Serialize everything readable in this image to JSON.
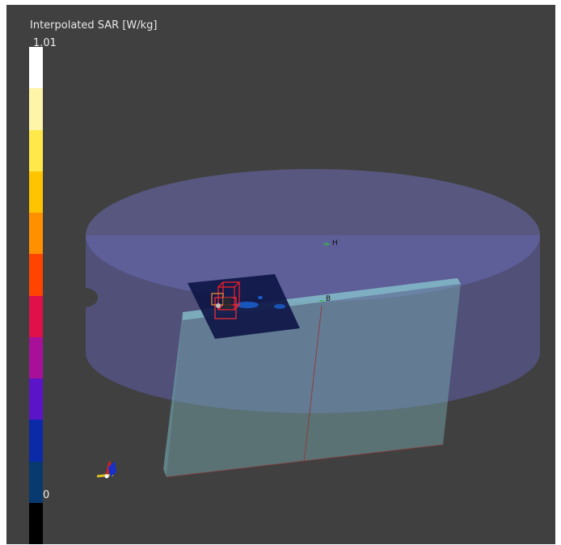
{
  "legend": {
    "title": "Interpolated SAR [W/kg]",
    "max_label": "1.01",
    "min_label": "0",
    "colors_top_to_bottom": [
      "#ffffff",
      "#fff5a8",
      "#ffe84a",
      "#ffc400",
      "#ff9000",
      "#ff4400",
      "#e0104a",
      "#a8109a",
      "#5c14c8",
      "#0a2aa8",
      "#083a70",
      "#000000"
    ]
  },
  "scene": {
    "marker_h": "H",
    "marker_b": "B",
    "colors": {
      "background": "#404040",
      "disk": "#6e6eb4",
      "plate": "#7aa8b8",
      "sar_map": "#0c1440",
      "device_box": "#ff2020"
    }
  }
}
